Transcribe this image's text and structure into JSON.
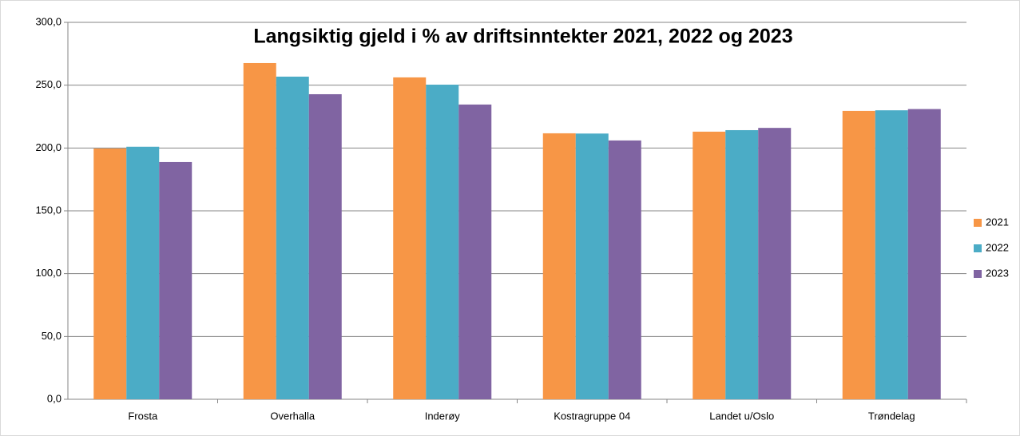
{
  "chart_data": {
    "type": "bar",
    "title": "Langsiktig gjeld i % av driftsinntekter 2021, 2022 og 2023",
    "categories": [
      "Frosta",
      "Overhalla",
      "Inderøy",
      "Kostragruppe 04",
      "Landet u/Oslo",
      "Trøndelag"
    ],
    "series": [
      {
        "name": "2021",
        "color": "#f79646",
        "values": [
          199.6,
          267.6,
          256.2,
          211.7,
          213.0,
          229.5
        ]
      },
      {
        "name": "2022",
        "color": "#4bacc6",
        "values": [
          201.0,
          256.8,
          250.4,
          211.5,
          214.2,
          230.0
        ]
      },
      {
        "name": "2023",
        "color": "#8064a2",
        "values": [
          188.8,
          242.8,
          234.6,
          206.0,
          216.0,
          231.0
        ]
      }
    ],
    "ylim": [
      0,
      300
    ],
    "yticks": [
      {
        "value": 0,
        "label": "0,0"
      },
      {
        "value": 50,
        "label": "50,0"
      },
      {
        "value": 100,
        "label": "100,0"
      },
      {
        "value": 150,
        "label": "150,0"
      },
      {
        "value": 200,
        "label": "200,0"
      },
      {
        "value": 250,
        "label": "250,0"
      },
      {
        "value": 300,
        "label": "300,0"
      }
    ],
    "grid": true,
    "legend": "right"
  }
}
